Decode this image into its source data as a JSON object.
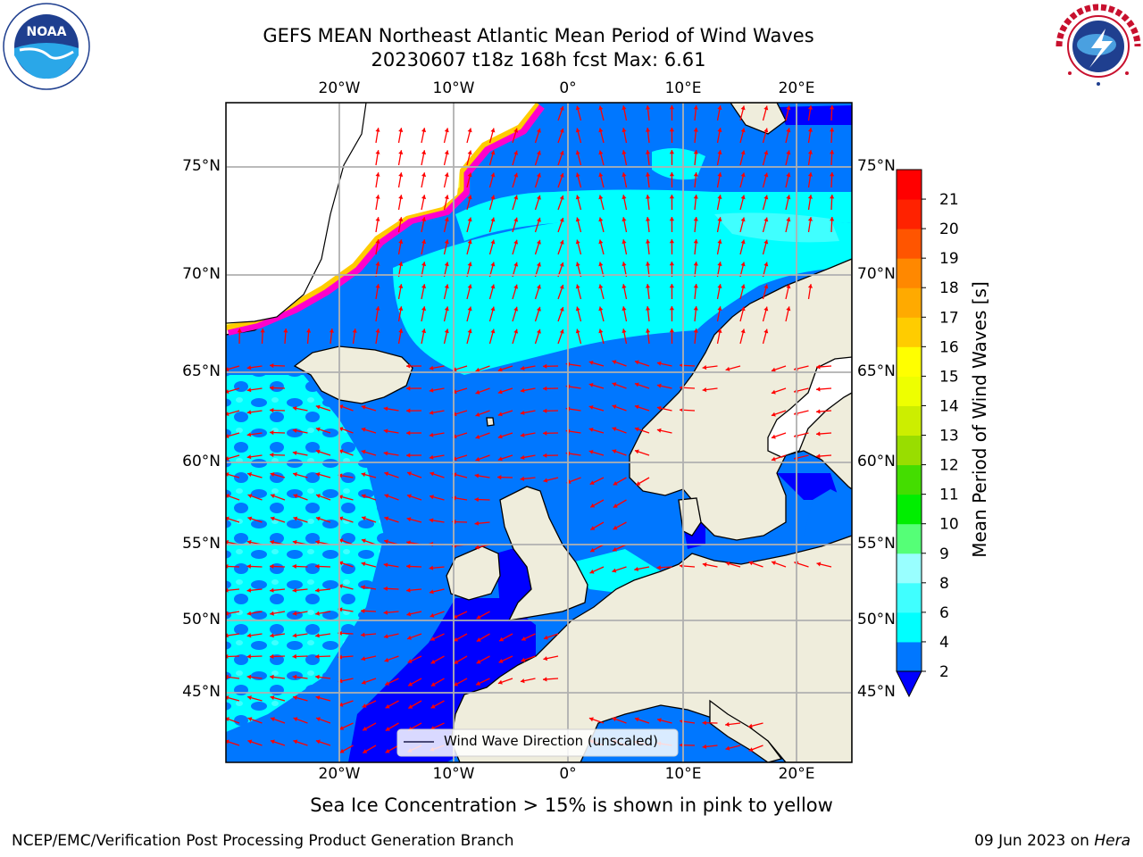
{
  "title": {
    "line1": "GEFS MEAN Northeast Atlantic Mean Period of Wind Waves",
    "line2": "20230607 t18z 168h fcst   Max: 6.61"
  },
  "logos": {
    "left": "NOAA",
    "right": "NATIONAL WEATHER SERVICE"
  },
  "map": {
    "lon_labels": [
      "20°W",
      "10°W",
      "0°",
      "10°E",
      "20°E"
    ],
    "lat_labels": [
      "75°N",
      "70°N",
      "65°N",
      "60°N",
      "55°N",
      "50°N",
      "45°N"
    ],
    "legend": "Wind Wave Direction (unscaled)",
    "colors": {
      "land": "#efeddc",
      "ice": "#ffffff",
      "grid": "#b0b0b0",
      "arrow": "#ff0000"
    }
  },
  "colorbar": {
    "title": "Mean Period of Wind Waves [s]",
    "ticks": [
      "2",
      "4",
      "6",
      "8",
      "9",
      "10",
      "11",
      "12",
      "13",
      "14",
      "15",
      "16",
      "17",
      "18",
      "19",
      "20",
      "21"
    ],
    "colors": [
      "#0077ff",
      "#00ffff",
      "#40ffff",
      "#99ffff",
      "#55ff77",
      "#00ee00",
      "#44dd00",
      "#99dd00",
      "#ccee00",
      "#eeff00",
      "#ffff00",
      "#ffcc00",
      "#ffaa00",
      "#ff8800",
      "#ff5500",
      "#ff2200",
      "#ff0000"
    ],
    "under_color": "#0000ff"
  },
  "caption": "Sea Ice Concentration > 15% is shown in pink to yellow",
  "footer": {
    "left": "NCEP/EMC/Verification Post Processing Product Generation Branch",
    "date": "09 Jun 2023 on",
    "host": "Hera"
  }
}
